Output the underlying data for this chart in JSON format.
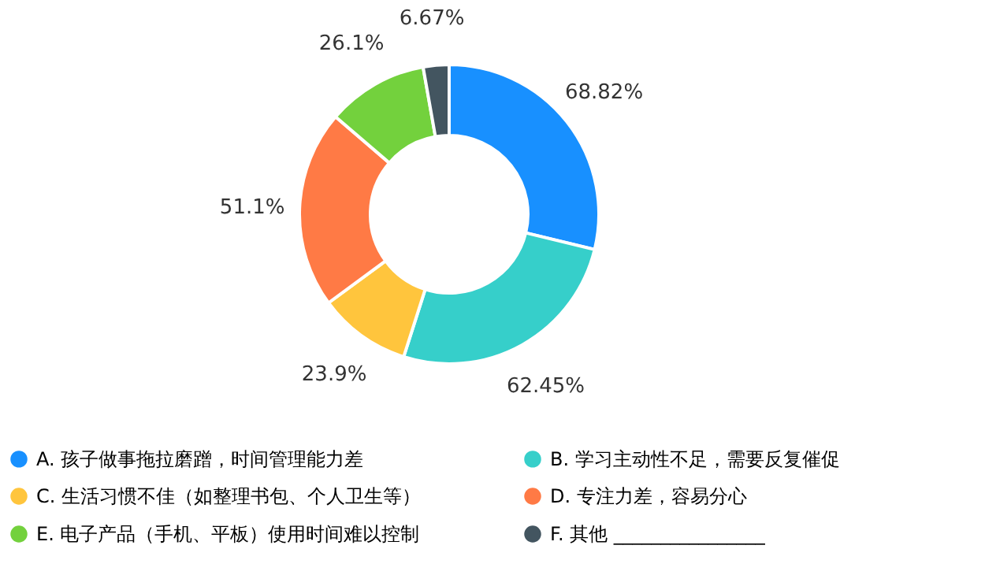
{
  "chart_data": {
    "type": "donut",
    "categories": [
      "A. 孩子做事拖拉磨蹭，时间管理能力差",
      "B. 学习主动性不足，需要反复催促",
      "C. 生活习惯不佳（如整理书包、个人卫生等）",
      "D. 专注力差，容易分心",
      "E. 电子产品（手机、平板）使用时间难以控制",
      "F. 其他 ________________"
    ],
    "values": [
      68.82,
      62.45,
      23.9,
      51.1,
      26.1,
      6.67
    ],
    "value_labels": [
      "68.82%",
      "62.45%",
      "23.9%",
      "51.1%",
      "26.1%",
      "6.67%"
    ],
    "colors": [
      "#1890ff",
      "#36cfca",
      "#ffc53d",
      "#ff7a45",
      "#73d13d",
      "#435560"
    ],
    "legend": "bottom"
  }
}
